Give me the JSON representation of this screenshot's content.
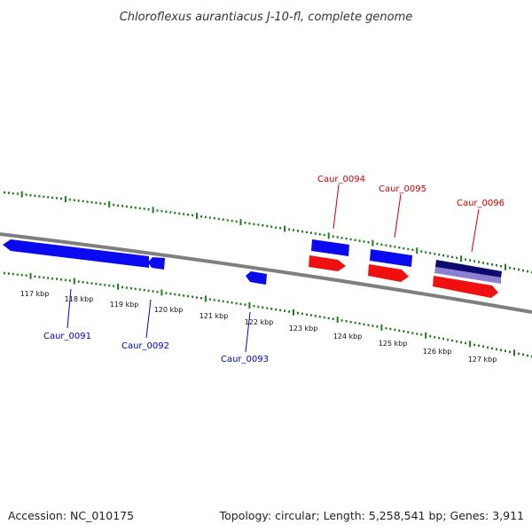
{
  "title": "Chloroflexus aurantiacus J-10-fl, complete genome",
  "footer": {
    "accession": "Accession: NC_010175",
    "summary": "Topology: circular; Length: 5,258,541 bp; Genes: 3,911"
  },
  "colors": {
    "backbone": "#7f7f7f",
    "ticks": "#1e7a1e",
    "forward_gene": "#0a0af0",
    "reverse_gene": "#f01010",
    "label_forward": "#c00000",
    "label_reverse": "#0000c0",
    "dark_gene": "#0a0a70",
    "light_gene": "#8a7fd0"
  },
  "scale": {
    "labels": [
      "117 kbp",
      "118 kbp",
      "119 kbp",
      "120 kbp",
      "121 kbp",
      "122 kbp",
      "123 kbp",
      "124 kbp",
      "125 kbp",
      "126 kbp",
      "127 kbp"
    ]
  },
  "genes_top": [
    {
      "name": "Caur_0094"
    },
    {
      "name": "Caur_0095"
    },
    {
      "name": "Caur_0096"
    }
  ],
  "genes_bottom": [
    {
      "name": "Caur_0091"
    },
    {
      "name": "Caur_0092"
    },
    {
      "name": "Caur_0093"
    }
  ]
}
